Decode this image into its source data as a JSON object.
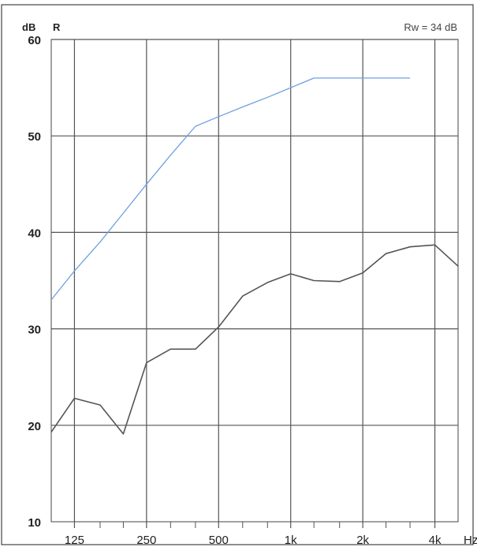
{
  "header": {
    "unit": "dB",
    "symbol": "R",
    "rating": "Rw = 34 dB"
  },
  "chart_data": {
    "type": "line",
    "title": "",
    "xlabel": "Hz",
    "ylabel": "dB",
    "x_scale": "log",
    "x_tick_labels": [
      "125",
      "250",
      "500",
      "1k",
      "2k",
      "4k"
    ],
    "x_tick_values": [
      125,
      250,
      500,
      1000,
      2000,
      4000
    ],
    "y_tick_labels": [
      "10",
      "20",
      "30",
      "40",
      "50",
      "60"
    ],
    "ylim": [
      10,
      60
    ],
    "xlim": [
      100,
      5000
    ],
    "grid": true,
    "series": [
      {
        "name": "",
        "color": "#6fa0e0",
        "x": [
          100,
          125,
          160,
          200,
          250,
          315,
          400,
          500,
          630,
          800,
          1000,
          1250,
          1600,
          2000,
          2500,
          3150
        ],
        "y": [
          33,
          36,
          39,
          42,
          45,
          48,
          51,
          52,
          53,
          54,
          55,
          56,
          56,
          56,
          56,
          56
        ]
      },
      {
        "name": "",
        "color": "#555555",
        "x": [
          100,
          125,
          160,
          200,
          250,
          315,
          400,
          500,
          630,
          800,
          1000,
          1250,
          1600,
          2000,
          2500,
          3150,
          4000,
          5000
        ],
        "y": [
          19.3,
          22.8,
          22.1,
          19.1,
          26.5,
          27.9,
          27.9,
          30.2,
          33.4,
          34.8,
          35.7,
          35.0,
          34.9,
          35.8,
          37.8,
          38.5,
          38.7,
          36.5
        ]
      }
    ]
  }
}
